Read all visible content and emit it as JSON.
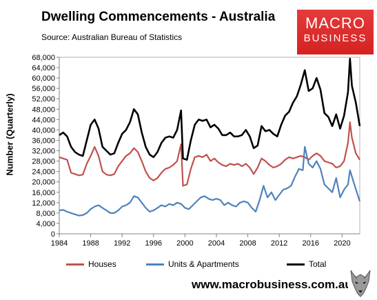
{
  "header": {
    "title": "Dwelling Commencements - Australia",
    "subtitle": "Source: Australian Bureau of Statistics"
  },
  "logo": {
    "line1": "MACRO",
    "line2": "BUSINESS",
    "color": "#dd2c2c"
  },
  "footer": {
    "url": "www.macrobusiness.com.au",
    "mascot_icon": "wolf-icon"
  },
  "chart_data": {
    "type": "line",
    "ylabel": "Number (Quarterly)",
    "ylim": [
      0,
      68000
    ],
    "yticks": [
      0,
      4000,
      8000,
      12000,
      16000,
      20000,
      24000,
      28000,
      32000,
      36000,
      40000,
      44000,
      48000,
      52000,
      56000,
      60000,
      64000,
      68000
    ],
    "ytick_labels": [
      "0",
      "4,000",
      "8,000",
      "12,000",
      "16,000",
      "20,000",
      "24,000",
      "28,000",
      "32,000",
      "36,000",
      "40,000",
      "44,000",
      "48,000",
      "52,000",
      "56,000",
      "60,000",
      "64,000",
      "68,000"
    ],
    "xlim": [
      1984,
      2022.25
    ],
    "xticks": [
      1984,
      1988,
      1992,
      1996,
      2000,
      2004,
      2008,
      2012,
      2016,
      2020
    ],
    "xtick_labels": [
      "1984",
      "1988",
      "1992",
      "1996",
      "2000",
      "2004",
      "2008",
      "2012",
      "2016",
      "2020"
    ],
    "grid": false,
    "legend_position": "bottom",
    "series": [
      {
        "name": "Houses",
        "color": "#c0504d",
        "points": [
          [
            1984.0,
            29500
          ],
          [
            1984.5,
            29000
          ],
          [
            1985.0,
            28500
          ],
          [
            1985.5,
            23500
          ],
          [
            1986.0,
            23000
          ],
          [
            1986.5,
            22500
          ],
          [
            1987.0,
            22800
          ],
          [
            1987.5,
            27000
          ],
          [
            1988.0,
            30000
          ],
          [
            1988.5,
            33500
          ],
          [
            1989.0,
            30000
          ],
          [
            1989.5,
            24000
          ],
          [
            1990.0,
            22800
          ],
          [
            1990.5,
            22500
          ],
          [
            1991.0,
            23000
          ],
          [
            1991.5,
            26000
          ],
          [
            1992.0,
            28000
          ],
          [
            1992.5,
            30000
          ],
          [
            1993.0,
            31000
          ],
          [
            1993.5,
            33000
          ],
          [
            1994.0,
            31500
          ],
          [
            1994.5,
            28000
          ],
          [
            1995.0,
            24000
          ],
          [
            1995.5,
            21500
          ],
          [
            1996.0,
            20500
          ],
          [
            1996.5,
            21500
          ],
          [
            1997.0,
            23500
          ],
          [
            1997.5,
            25000
          ],
          [
            1998.0,
            25500
          ],
          [
            1998.5,
            26500
          ],
          [
            1999.0,
            28000
          ],
          [
            1999.5,
            34500
          ],
          [
            1999.75,
            18500
          ],
          [
            2000.25,
            19000
          ],
          [
            2000.75,
            25000
          ],
          [
            2001.25,
            29500
          ],
          [
            2001.75,
            30000
          ],
          [
            2002.25,
            29500
          ],
          [
            2002.75,
            30500
          ],
          [
            2003.25,
            28000
          ],
          [
            2003.75,
            29000
          ],
          [
            2004.25,
            27500
          ],
          [
            2004.75,
            26500
          ],
          [
            2005.25,
            26000
          ],
          [
            2005.75,
            27000
          ],
          [
            2006.25,
            26500
          ],
          [
            2006.75,
            27000
          ],
          [
            2007.25,
            26000
          ],
          [
            2007.75,
            27000
          ],
          [
            2008.25,
            25500
          ],
          [
            2008.75,
            23000
          ],
          [
            2009.25,
            25500
          ],
          [
            2009.75,
            29000
          ],
          [
            2010.25,
            28000
          ],
          [
            2010.75,
            26500
          ],
          [
            2011.25,
            25500
          ],
          [
            2011.75,
            26000
          ],
          [
            2012.25,
            27000
          ],
          [
            2012.75,
            28500
          ],
          [
            2013.25,
            29500
          ],
          [
            2013.75,
            29000
          ],
          [
            2014.25,
            29500
          ],
          [
            2014.75,
            30000
          ],
          [
            2015.25,
            29500
          ],
          [
            2015.75,
            28500
          ],
          [
            2016.25,
            30000
          ],
          [
            2016.75,
            31000
          ],
          [
            2017.25,
            30000
          ],
          [
            2017.75,
            28000
          ],
          [
            2018.25,
            27500
          ],
          [
            2018.75,
            27000
          ],
          [
            2019.25,
            25500
          ],
          [
            2019.75,
            26000
          ],
          [
            2020.25,
            28000
          ],
          [
            2020.75,
            35000
          ],
          [
            2021.0,
            43000
          ],
          [
            2021.25,
            37000
          ],
          [
            2021.75,
            31000
          ],
          [
            2022.25,
            28500
          ]
        ]
      },
      {
        "name": "Units & Apartments",
        "color": "#4f81bd",
        "points": [
          [
            1984.0,
            9000
          ],
          [
            1984.5,
            9200
          ],
          [
            1985.0,
            8500
          ],
          [
            1985.5,
            8000
          ],
          [
            1986.0,
            7500
          ],
          [
            1986.5,
            7000
          ],
          [
            1987.0,
            7200
          ],
          [
            1987.5,
            8000
          ],
          [
            1988.0,
            9500
          ],
          [
            1988.5,
            10500
          ],
          [
            1989.0,
            11000
          ],
          [
            1989.5,
            10000
          ],
          [
            1990.0,
            9000
          ],
          [
            1990.5,
            8000
          ],
          [
            1991.0,
            8000
          ],
          [
            1991.5,
            9000
          ],
          [
            1992.0,
            10500
          ],
          [
            1992.5,
            11000
          ],
          [
            1993.0,
            12000
          ],
          [
            1993.5,
            14500
          ],
          [
            1994.0,
            14000
          ],
          [
            1994.5,
            12000
          ],
          [
            1995.0,
            10000
          ],
          [
            1995.5,
            8500
          ],
          [
            1996.0,
            9000
          ],
          [
            1996.5,
            10000
          ],
          [
            1997.0,
            11000
          ],
          [
            1997.5,
            10500
          ],
          [
            1998.0,
            11500
          ],
          [
            1998.5,
            11000
          ],
          [
            1999.0,
            12000
          ],
          [
            1999.5,
            11500
          ],
          [
            2000.0,
            10000
          ],
          [
            2000.5,
            9500
          ],
          [
            2001.0,
            11000
          ],
          [
            2001.5,
            12500
          ],
          [
            2002.0,
            14000
          ],
          [
            2002.5,
            14500
          ],
          [
            2003.0,
            13500
          ],
          [
            2003.5,
            13000
          ],
          [
            2004.0,
            13500
          ],
          [
            2004.5,
            13000
          ],
          [
            2005.0,
            11000
          ],
          [
            2005.5,
            12000
          ],
          [
            2006.0,
            11000
          ],
          [
            2006.5,
            10500
          ],
          [
            2007.0,
            12000
          ],
          [
            2007.5,
            12500
          ],
          [
            2008.0,
            12000
          ],
          [
            2008.5,
            10000
          ],
          [
            2009.0,
            8500
          ],
          [
            2009.5,
            13000
          ],
          [
            2010.0,
            18500
          ],
          [
            2010.5,
            14000
          ],
          [
            2011.0,
            16000
          ],
          [
            2011.5,
            13000
          ],
          [
            2012.0,
            15000
          ],
          [
            2012.5,
            17000
          ],
          [
            2013.0,
            17500
          ],
          [
            2013.5,
            18500
          ],
          [
            2014.0,
            22000
          ],
          [
            2014.5,
            25000
          ],
          [
            2015.0,
            24500
          ],
          [
            2015.25,
            33500
          ],
          [
            2015.75,
            27000
          ],
          [
            2016.25,
            25500
          ],
          [
            2016.75,
            28000
          ],
          [
            2017.25,
            25000
          ],
          [
            2017.75,
            19000
          ],
          [
            2018.25,
            17500
          ],
          [
            2018.75,
            16000
          ],
          [
            2019.25,
            21500
          ],
          [
            2019.75,
            14000
          ],
          [
            2020.25,
            17000
          ],
          [
            2020.75,
            19000
          ],
          [
            2021.0,
            24500
          ],
          [
            2021.5,
            19500
          ],
          [
            2022.25,
            12500
          ]
        ]
      },
      {
        "name": "Total",
        "color": "#000000",
        "points": [
          [
            1984.0,
            38000
          ],
          [
            1984.5,
            39000
          ],
          [
            1985.0,
            37500
          ],
          [
            1985.5,
            33500
          ],
          [
            1986.0,
            31500
          ],
          [
            1986.5,
            30500
          ],
          [
            1987.0,
            30000
          ],
          [
            1987.5,
            36000
          ],
          [
            1988.0,
            42000
          ],
          [
            1988.5,
            44000
          ],
          [
            1989.0,
            40500
          ],
          [
            1989.5,
            33500
          ],
          [
            1990.0,
            32000
          ],
          [
            1990.5,
            30500
          ],
          [
            1991.0,
            31000
          ],
          [
            1991.5,
            35000
          ],
          [
            1992.0,
            38500
          ],
          [
            1992.5,
            40000
          ],
          [
            1993.0,
            43000
          ],
          [
            1993.5,
            48000
          ],
          [
            1994.0,
            46000
          ],
          [
            1994.5,
            39000
          ],
          [
            1995.0,
            33500
          ],
          [
            1995.5,
            30500
          ],
          [
            1996.0,
            29500
          ],
          [
            1996.5,
            31500
          ],
          [
            1997.0,
            35000
          ],
          [
            1997.5,
            37000
          ],
          [
            1998.0,
            37500
          ],
          [
            1998.5,
            37000
          ],
          [
            1999.0,
            40000
          ],
          [
            1999.5,
            47500
          ],
          [
            1999.75,
            29000
          ],
          [
            2000.25,
            28500
          ],
          [
            2000.75,
            36000
          ],
          [
            2001.25,
            42000
          ],
          [
            2001.75,
            44000
          ],
          [
            2002.25,
            43500
          ],
          [
            2002.75,
            44000
          ],
          [
            2003.25,
            41000
          ],
          [
            2003.75,
            42000
          ],
          [
            2004.25,
            40500
          ],
          [
            2004.75,
            38000
          ],
          [
            2005.25,
            38000
          ],
          [
            2005.75,
            39000
          ],
          [
            2006.25,
            37500
          ],
          [
            2006.75,
            37500
          ],
          [
            2007.25,
            38000
          ],
          [
            2007.75,
            40000
          ],
          [
            2008.25,
            37500
          ],
          [
            2008.75,
            33000
          ],
          [
            2009.25,
            34000
          ],
          [
            2009.75,
            41500
          ],
          [
            2010.25,
            39500
          ],
          [
            2010.75,
            40000
          ],
          [
            2011.25,
            38500
          ],
          [
            2011.75,
            37500
          ],
          [
            2012.25,
            42000
          ],
          [
            2012.75,
            45500
          ],
          [
            2013.25,
            47000
          ],
          [
            2013.75,
            50500
          ],
          [
            2014.25,
            53000
          ],
          [
            2014.75,
            57500
          ],
          [
            2015.25,
            63000
          ],
          [
            2015.75,
            55000
          ],
          [
            2016.25,
            56000
          ],
          [
            2016.75,
            60000
          ],
          [
            2017.25,
            55500
          ],
          [
            2017.75,
            46500
          ],
          [
            2018.25,
            45000
          ],
          [
            2018.75,
            41500
          ],
          [
            2019.25,
            46000
          ],
          [
            2019.75,
            40500
          ],
          [
            2020.25,
            45500
          ],
          [
            2020.75,
            54500
          ],
          [
            2021.0,
            67500
          ],
          [
            2021.25,
            57000
          ],
          [
            2021.75,
            50500
          ],
          [
            2022.25,
            41500
          ]
        ]
      }
    ]
  }
}
